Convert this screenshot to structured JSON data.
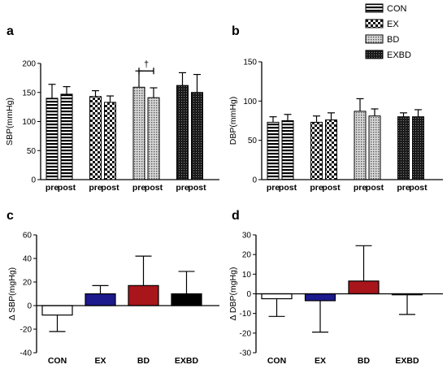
{
  "legend": [
    {
      "label": "CON",
      "pattern": "hlines"
    },
    {
      "label": "EX",
      "pattern": "checker"
    },
    {
      "label": "BD",
      "pattern": "dots"
    },
    {
      "label": "EXBD",
      "pattern": "darkdots"
    }
  ],
  "chart_data": [
    {
      "panel": "a",
      "type": "bar",
      "ylabel": "SBP(mmHg)",
      "ylim": [
        0,
        200
      ],
      "yticks": [
        0,
        50,
        100,
        150,
        200
      ],
      "group_labels": [
        [
          "pre",
          "post"
        ],
        [
          "pre",
          "post"
        ],
        [
          "pre",
          "post"
        ],
        [
          "pre",
          "post"
        ]
      ],
      "groups": [
        {
          "name": "CON",
          "pre": 140,
          "pre_err": 24,
          "post": 147,
          "post_err": 13
        },
        {
          "name": "EX",
          "pre": 143,
          "pre_err": 10,
          "post": 133,
          "post_err": 11
        },
        {
          "name": "BD",
          "pre": 159,
          "pre_err": 28,
          "post": 141,
          "post_err": 17
        },
        {
          "name": "EXBD",
          "pre": 162,
          "pre_err": 22,
          "post": 150,
          "post_err": 31
        }
      ],
      "annotation": {
        "symbol": "†",
        "group": "BD"
      }
    },
    {
      "panel": "b",
      "type": "bar",
      "ylabel": "DBP(mmHg)",
      "ylim": [
        0,
        150
      ],
      "yticks": [
        0,
        50,
        100,
        150
      ],
      "group_labels": [
        [
          "pre",
          "post"
        ],
        [
          "pre",
          "post"
        ],
        [
          "pre",
          "post"
        ],
        [
          "pre",
          "post"
        ]
      ],
      "groups": [
        {
          "name": "CON",
          "pre": 73,
          "pre_err": 7,
          "post": 75,
          "post_err": 8
        },
        {
          "name": "EX",
          "pre": 73,
          "pre_err": 8,
          "post": 76,
          "post_err": 9
        },
        {
          "name": "BD",
          "pre": 87,
          "pre_err": 16,
          "post": 81,
          "post_err": 9
        },
        {
          "name": "EXBD",
          "pre": 80,
          "pre_err": 5,
          "post": 80,
          "post_err": 9
        }
      ]
    },
    {
      "panel": "c",
      "type": "bar",
      "ylabel": "Δ SBP(mgHg)",
      "ylim": [
        -40,
        60
      ],
      "yticks": [
        -40,
        -20,
        0,
        20,
        40,
        60
      ],
      "categories": [
        "CON",
        "EX",
        "BD",
        "EXBD"
      ],
      "values": [
        -8,
        10,
        17,
        10
      ],
      "errors": [
        14,
        7,
        25,
        19
      ],
      "colors": [
        "#ffffff",
        "#1c1a8c",
        "#a8151b",
        "#000000"
      ]
    },
    {
      "panel": "d",
      "type": "bar",
      "ylabel": "Δ DBP(mgHg)",
      "ylim": [
        -30,
        30
      ],
      "yticks": [
        -30,
        -20,
        -10,
        0,
        10,
        20,
        30
      ],
      "categories": [
        "CON",
        "EX",
        "BD",
        "EXBD"
      ],
      "values": [
        -2.5,
        -3.5,
        6.5,
        -0.5
      ],
      "errors": [
        9,
        16,
        18,
        10
      ],
      "colors": [
        "#ffffff",
        "#1c1a8c",
        "#a8151b",
        "#000000"
      ]
    }
  ]
}
